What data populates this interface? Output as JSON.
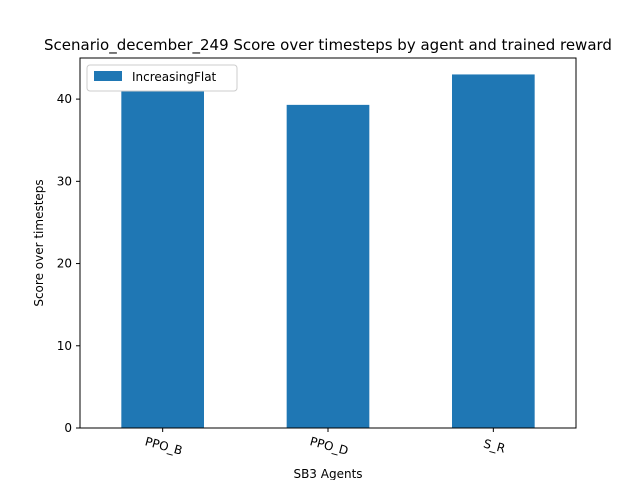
{
  "chart_data": {
    "type": "bar",
    "title": "Scenario_december_249 Score over timesteps by agent and trained reward",
    "xlabel": "SB3 Agents",
    "ylabel": "Score over timesteps",
    "categories": [
      "PPO_B",
      "PPO_D",
      "S_R"
    ],
    "series": [
      {
        "name": "IncreasingFlat",
        "values": [
          41.0,
          39.3,
          43.0
        ],
        "color": "#1f77b4"
      }
    ],
    "ylim": [
      0,
      45
    ],
    "yticks": [
      0,
      10,
      20,
      30,
      40
    ],
    "grid": false,
    "legend_position": "top-left"
  }
}
